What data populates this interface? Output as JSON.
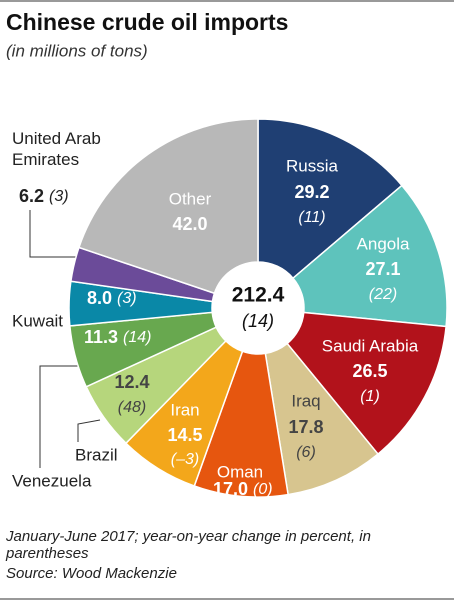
{
  "chart_data": {
    "type": "donut",
    "title": "Chinese crude oil imports",
    "subtitle": "(in millions of tons)",
    "categories": [
      "Russia",
      "Angola",
      "Saudi Arabia",
      "Iraq",
      "Oman",
      "Iran",
      "Brazil",
      "Venezuela",
      "Kuwait",
      "United Arab Emirates",
      "Other"
    ],
    "values": [
      29.2,
      27.1,
      26.5,
      17.8,
      17.0,
      14.5,
      12.4,
      11.3,
      8.0,
      6.2,
      42.0
    ],
    "value_labels": [
      "29.2",
      "27.1",
      "26.5",
      "17.8",
      "17.0",
      "14.5",
      "12.4",
      "11.3",
      "8.0",
      "6.2",
      "42.0"
    ],
    "changes": [
      11,
      22,
      1,
      6,
      0,
      -3,
      48,
      14,
      3,
      3,
      null
    ],
    "change_labels": [
      "(11)",
      "(22)",
      "(1)",
      "(6)",
      "(0)",
      "(–3)",
      "(48)",
      "(14)",
      "(3)",
      "(3)",
      null
    ],
    "colors": [
      "#1f3f73",
      "#5ec3bc",
      "#b2121b",
      "#d7c58f",
      "#e6560f",
      "#f3a71b",
      "#b6d67c",
      "#68a84f",
      "#0a88a7",
      "#6b4b99",
      "#b8b8b8"
    ],
    "total": 212.4,
    "total_change": 14,
    "total_change_label": "(14)",
    "note": "January-June 2017; year-on-year change in percent, in parentheses",
    "source": "Source: Wood Mackenzie"
  }
}
